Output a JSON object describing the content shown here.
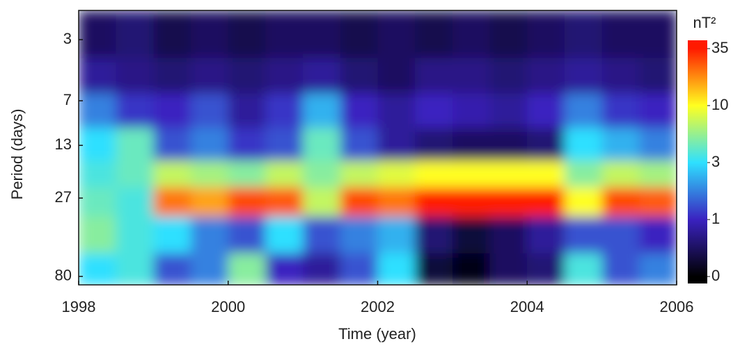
{
  "chart_data": {
    "type": "heatmap",
    "x_label": "Time (year)",
    "y_label": "Period (days)",
    "colorbar_label": "nT²",
    "xlim": [
      1998,
      2006
    ],
    "xticks": [
      1998,
      2000,
      2002,
      2004,
      2006
    ],
    "ylim": [
      2,
      90
    ],
    "yscale": "log",
    "yticks": [
      3,
      7,
      13,
      27,
      80
    ],
    "x": [
      1998.25,
      1998.75,
      1999.25,
      1999.75,
      2000.25,
      2000.75,
      2001.25,
      2001.75,
      2002.25,
      2002.75,
      2003.25,
      2003.75,
      2004.25,
      2004.75,
      2005.25,
      2005.75
    ],
    "y": [
      3,
      5,
      8,
      13,
      20,
      27,
      45,
      75
    ],
    "values": [
      [
        0.5,
        0.6,
        0.4,
        0.5,
        0.4,
        0.5,
        0.5,
        0.4,
        0.5,
        0.4,
        0.5,
        0.4,
        0.5,
        0.6,
        0.5,
        0.5
      ],
      [
        0.8,
        0.7,
        0.6,
        0.7,
        0.6,
        0.7,
        0.8,
        0.6,
        0.5,
        0.7,
        0.7,
        0.6,
        0.7,
        0.8,
        0.7,
        0.6
      ],
      [
        2,
        1.2,
        1,
        1.5,
        0.8,
        1.2,
        2.5,
        1,
        0.8,
        1,
        0.9,
        0.8,
        1,
        2,
        1.2,
        1
      ],
      [
        3,
        5,
        1.5,
        2,
        1.2,
        1.5,
        5,
        1.5,
        0.8,
        0.6,
        0.5,
        0.5,
        0.6,
        3,
        2.5,
        2
      ],
      [
        4,
        5,
        8,
        7,
        6,
        8,
        6,
        8,
        9,
        10,
        10,
        10,
        10,
        6,
        8,
        7
      ],
      [
        5,
        4,
        25,
        20,
        30,
        28,
        8,
        30,
        25,
        35,
        35,
        35,
        35,
        10,
        30,
        28
      ],
      [
        6,
        4,
        3,
        2,
        1.5,
        3,
        1.5,
        2,
        2.5,
        0.6,
        0.3,
        0.5,
        0.8,
        1.5,
        1.5,
        1
      ],
      [
        3,
        4,
        1.5,
        2,
        6,
        1,
        0.8,
        1.5,
        3,
        0.3,
        0.1,
        0.5,
        0.6,
        4,
        1.5,
        2
      ]
    ],
    "cticks": [
      0,
      1,
      3,
      10,
      35
    ],
    "colors": [
      "#000000",
      "#3a22c0",
      "#2ee0ff",
      "#ffff20",
      "#ff1a00"
    ]
  }
}
